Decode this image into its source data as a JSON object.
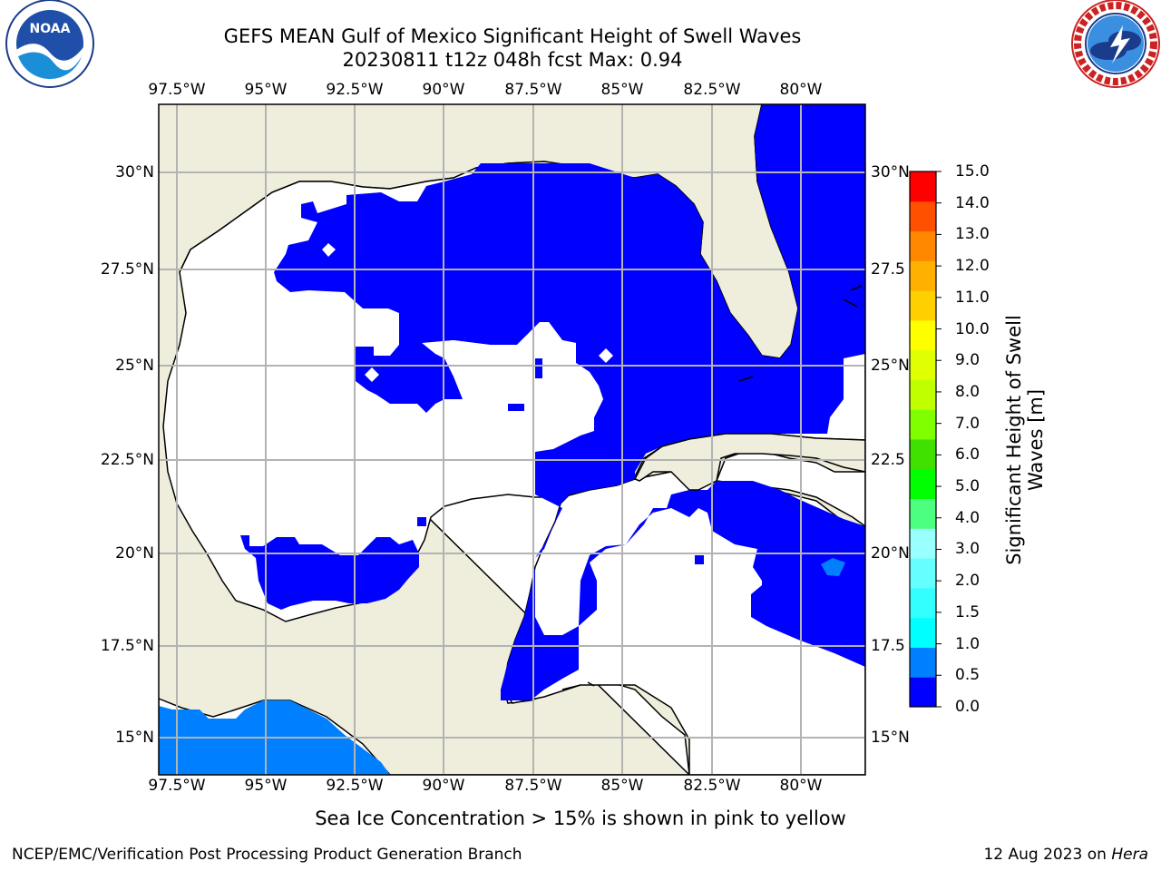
{
  "header": {
    "title_line1": "GEFS MEAN Gulf of Mexico Significant Height of Swell Waves",
    "title_line2": "20230811 t12z 048h fcst   Max: 0.94"
  },
  "map": {
    "lon_labels": [
      "97.5°W",
      "95°W",
      "92.5°W",
      "90°W",
      "87.5°W",
      "85°W",
      "82.5°W",
      "80°W"
    ],
    "lat_labels_left": [
      "30°N",
      "27.5°N",
      "25°N",
      "22.5°N",
      "20°N",
      "17.5°N",
      "15°N"
    ],
    "lat_labels_right": [
      "30°N",
      "27.5",
      "25°N",
      "22.5",
      "20°N",
      "17.5",
      "15°N"
    ],
    "colors": {
      "land": "#efeedc",
      "ocean_low": "#0000ff",
      "ocean_mid": "#0080ff",
      "grid": "#b3b3b3"
    }
  },
  "colorbar": {
    "label": "Significant Height of Swell Waves [m]",
    "label_line1": "Significant Height of Swell",
    "label_line2": "Waves [m]",
    "ticks": [
      "15.0",
      "14.0",
      "13.0",
      "12.0",
      "11.0",
      "10.0",
      "9.0",
      "8.0",
      "7.0",
      "6.0",
      "5.0",
      "4.0",
      "3.0",
      "2.0",
      "1.5",
      "1.0",
      "0.5",
      "0.0"
    ],
    "bands_bottom_to_top": [
      "#0000ff",
      "#0080ff",
      "#00ffff",
      "#33ffff",
      "#66ffff",
      "#99ffff",
      "#4dff80",
      "#00ff00",
      "#40e000",
      "#80ff00",
      "#c0ff00",
      "#e0ff00",
      "#ffff00",
      "#ffd000",
      "#ffb000",
      "#ff8800",
      "#ff5000",
      "#ff0000"
    ]
  },
  "footer": {
    "note": "Sea Ice Concentration > 15% is shown in pink to yellow",
    "credit": "NCEP/EMC/Verification Post Processing Product Generation Branch",
    "date_prefix": "12 Aug 2023 on ",
    "host": "Hera"
  },
  "logos": {
    "left": "noaa-logo",
    "right": "nws-logo"
  }
}
